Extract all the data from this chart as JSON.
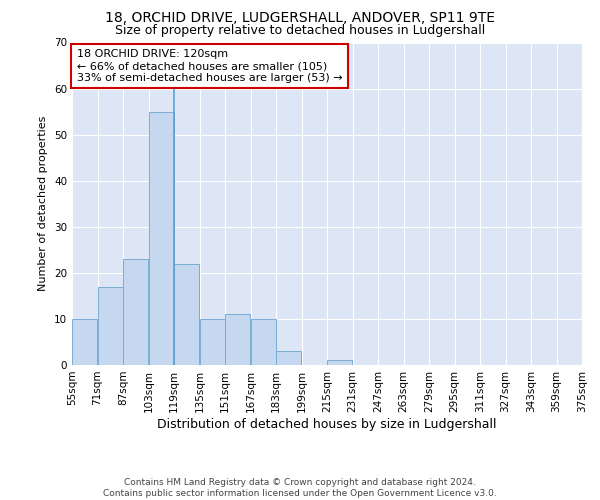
{
  "title": "18, ORCHID DRIVE, LUDGERSHALL, ANDOVER, SP11 9TE",
  "subtitle": "Size of property relative to detached houses in Ludgershall",
  "xlabel": "Distribution of detached houses by size in Ludgershall",
  "ylabel": "Number of detached properties",
  "bins": [
    55,
    71,
    87,
    103,
    119,
    135,
    151,
    167,
    183,
    199,
    215,
    231,
    247,
    263,
    279,
    295,
    311,
    327,
    343,
    359,
    375
  ],
  "bin_labels": [
    "55sqm",
    "71sqm",
    "87sqm",
    "103sqm",
    "119sqm",
    "135sqm",
    "151sqm",
    "167sqm",
    "183sqm",
    "199sqm",
    "215sqm",
    "231sqm",
    "247sqm",
    "263sqm",
    "279sqm",
    "295sqm",
    "311sqm",
    "327sqm",
    "343sqm",
    "359sqm",
    "375sqm"
  ],
  "values": [
    10,
    17,
    23,
    55,
    22,
    10,
    11,
    10,
    3,
    0,
    1,
    0,
    0,
    0,
    0,
    0,
    0,
    0,
    0,
    0
  ],
  "bar_color": "#c5d8f0",
  "bar_edge_color": "#7aadd4",
  "property_line_x": 119,
  "property_line_color": "#5a9fd4",
  "annotation_text": "18 ORCHID DRIVE: 120sqm\n← 66% of detached houses are smaller (105)\n33% of semi-detached houses are larger (53) →",
  "annotation_box_color": "#ffffff",
  "annotation_box_edge_color": "#cc0000",
  "ylim": [
    0,
    70
  ],
  "yticks": [
    0,
    10,
    20,
    30,
    40,
    50,
    60,
    70
  ],
  "background_color": "#dce6f5",
  "footer_text": "Contains HM Land Registry data © Crown copyright and database right 2024.\nContains public sector information licensed under the Open Government Licence v3.0.",
  "title_fontsize": 10,
  "subtitle_fontsize": 9,
  "xlabel_fontsize": 9,
  "ylabel_fontsize": 8,
  "tick_fontsize": 7.5,
  "annotation_fontsize": 8,
  "footer_fontsize": 6.5
}
